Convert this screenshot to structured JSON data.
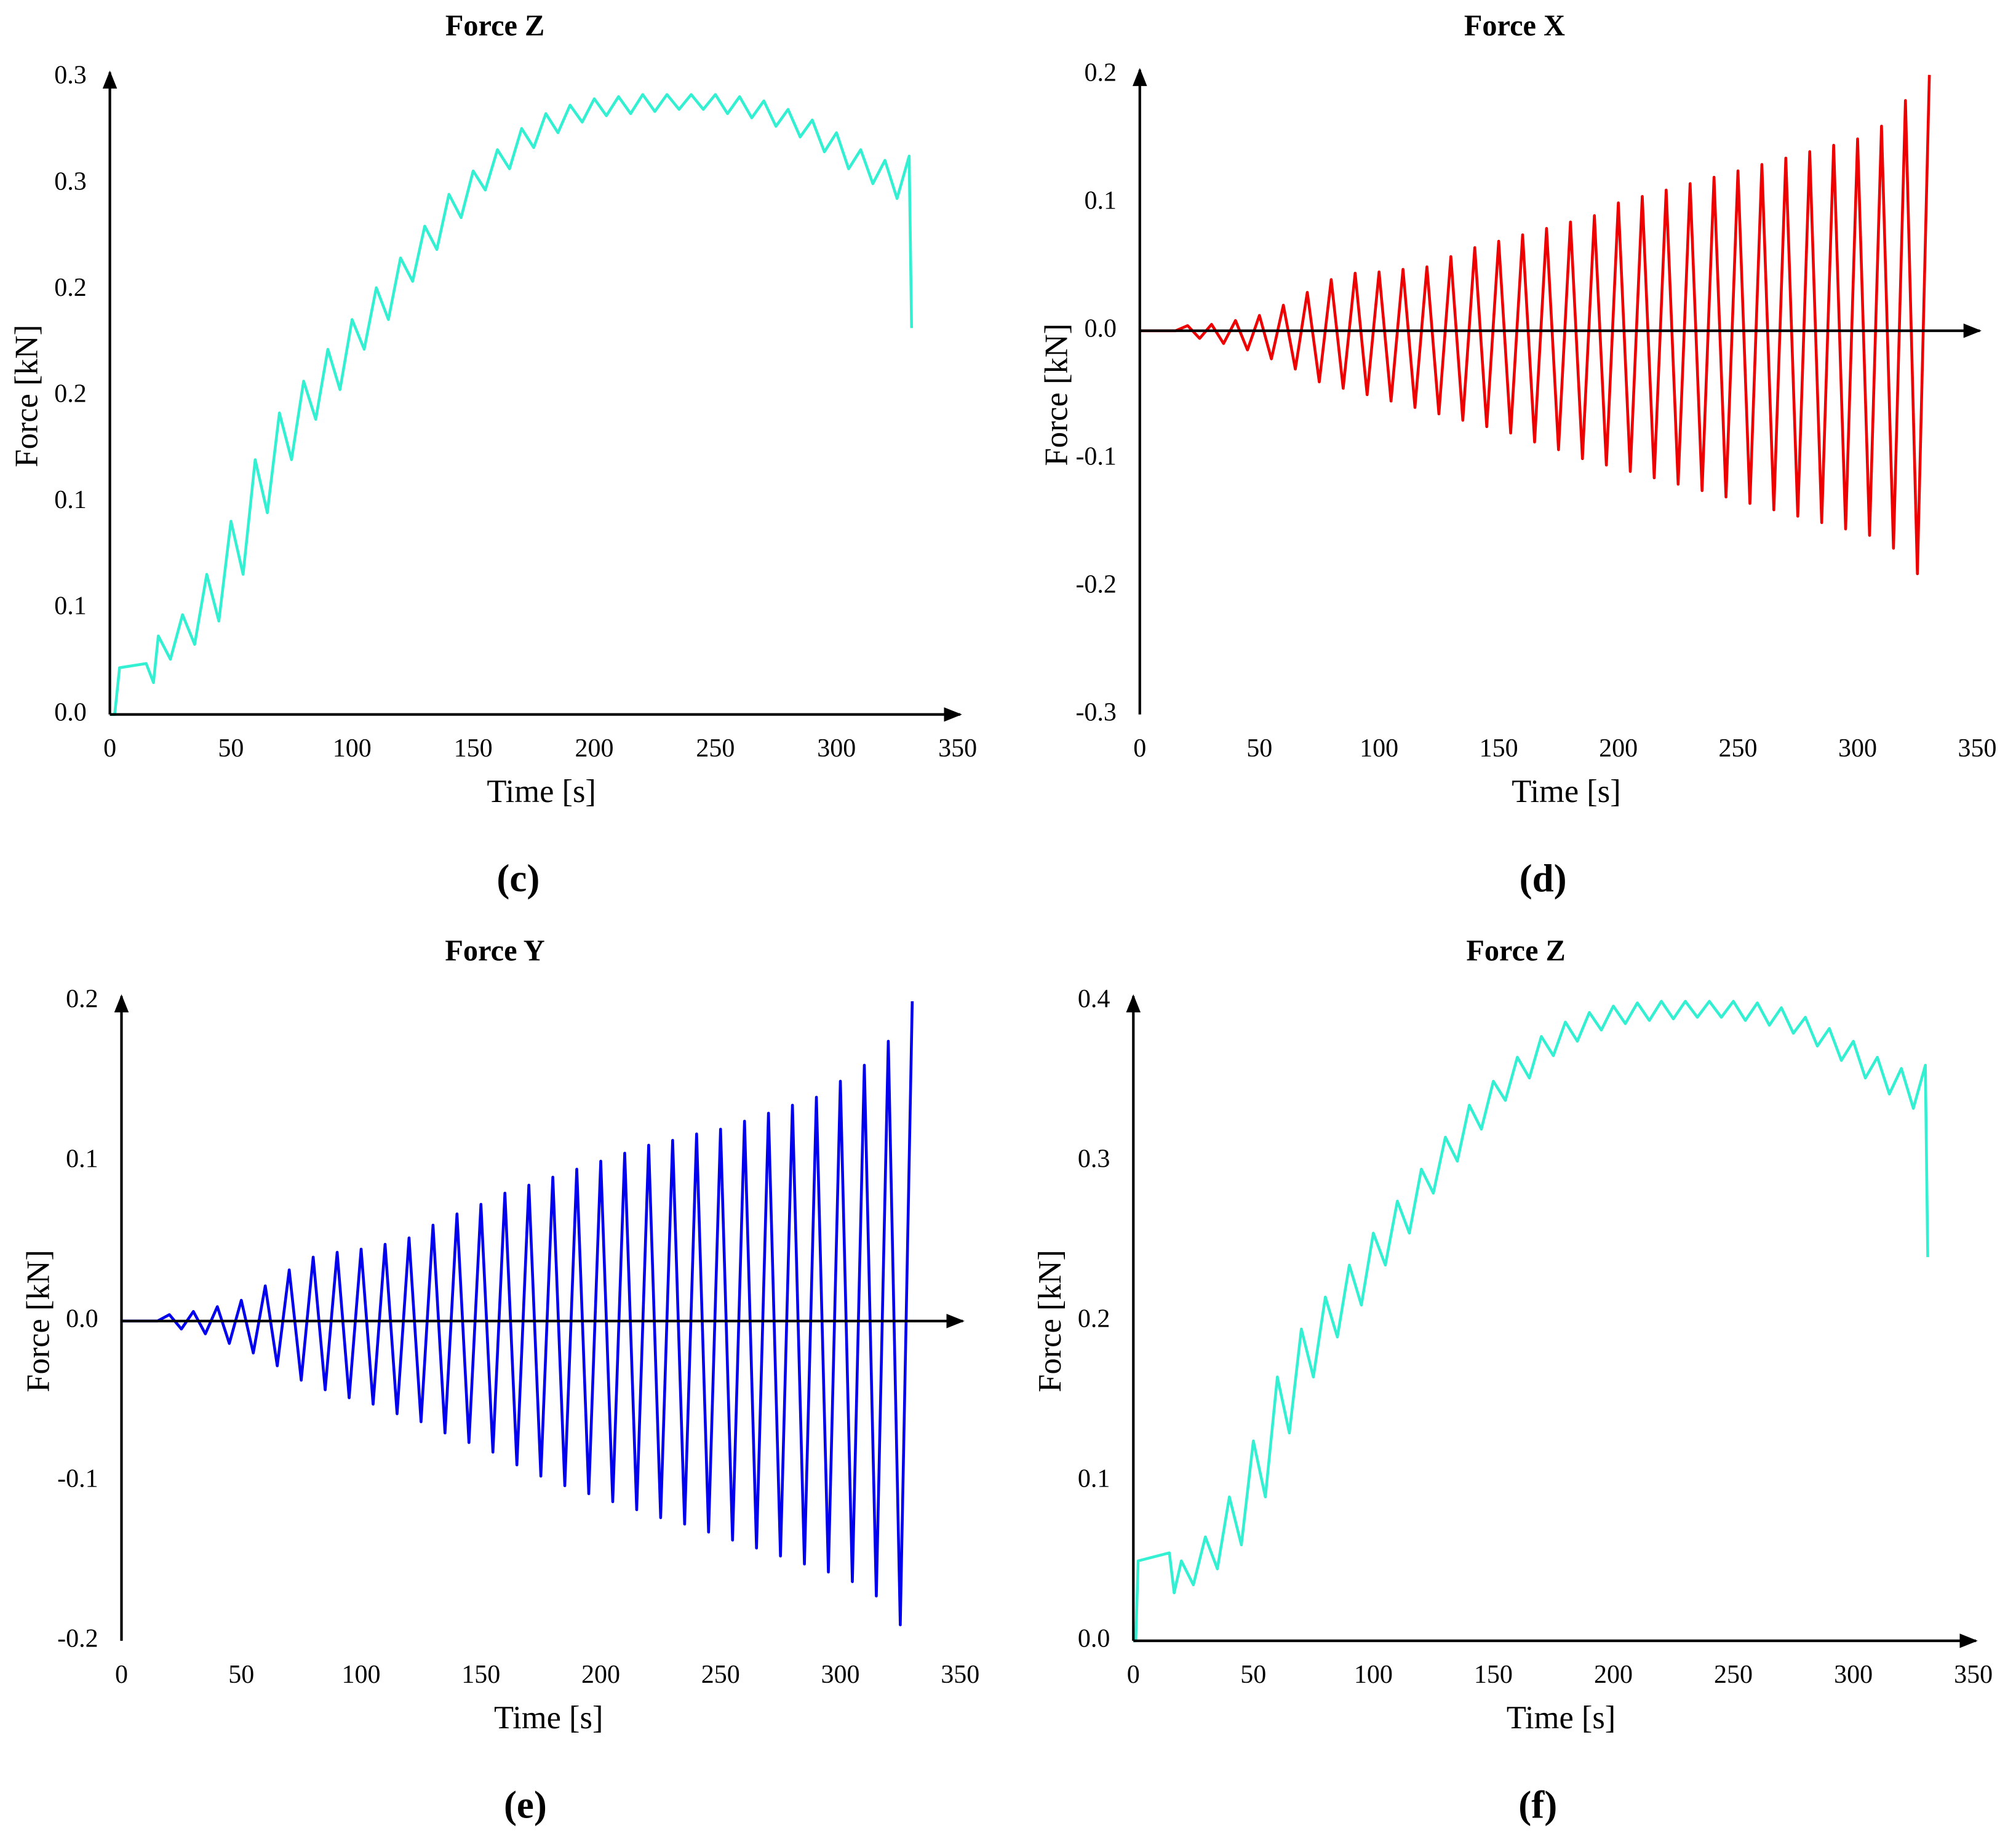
{
  "chart_data": [
    {
      "type": "line",
      "title": "Force Z",
      "label": "(c)",
      "x_label": "Time [s]",
      "y_label": "Force [kN]",
      "color": "#33f0d2",
      "xlim": [
        0,
        350
      ],
      "xticks": [
        0,
        50,
        100,
        150,
        200,
        250,
        300,
        350
      ],
      "ylim": [
        0,
        0.3
      ],
      "yticks": [
        {
          "value": 0,
          "label": "0.0"
        },
        {
          "value": 0.05,
          "label": "0.1"
        },
        {
          "value": 0.1,
          "label": "0.1"
        },
        {
          "value": 0.15,
          "label": "0.2"
        },
        {
          "value": 0.2,
          "label": "0.2"
        },
        {
          "value": 0.25,
          "label": "0.3"
        },
        {
          "value": 0.3,
          "label": "0.3"
        }
      ],
      "x": [
        0,
        2,
        4,
        15,
        18,
        20,
        25,
        30,
        35,
        40,
        45,
        50,
        55,
        60,
        65,
        70,
        75,
        80,
        85,
        90,
        95,
        100,
        105,
        110,
        115,
        120,
        125,
        130,
        135,
        140,
        145,
        150,
        155,
        160,
        165,
        170,
        175,
        180,
        185,
        190,
        195,
        200,
        205,
        210,
        215,
        220,
        225,
        230,
        235,
        240,
        245,
        250,
        255,
        260,
        265,
        270,
        275,
        280,
        285,
        290,
        295,
        300,
        305,
        310,
        315,
        320,
        325,
        330,
        331
      ],
      "values": [
        0,
        0,
        0.022,
        0.024,
        0.015,
        0.037,
        0.026,
        0.047,
        0.033,
        0.066,
        0.044,
        0.091,
        0.066,
        0.12,
        0.095,
        0.142,
        0.12,
        0.157,
        0.139,
        0.172,
        0.153,
        0.186,
        0.172,
        0.201,
        0.186,
        0.215,
        0.204,
        0.23,
        0.219,
        0.245,
        0.234,
        0.256,
        0.247,
        0.266,
        0.257,
        0.276,
        0.267,
        0.283,
        0.274,
        0.287,
        0.279,
        0.29,
        0.282,
        0.291,
        0.283,
        0.292,
        0.284,
        0.292,
        0.285,
        0.292,
        0.285,
        0.292,
        0.283,
        0.291,
        0.281,
        0.289,
        0.277,
        0.285,
        0.272,
        0.28,
        0.265,
        0.274,
        0.257,
        0.266,
        0.25,
        0.261,
        0.243,
        0.263,
        0.182
      ]
    },
    {
      "type": "line",
      "title": "Force X",
      "label": "(d)",
      "x_label": "Time [s]",
      "y_label": "Force [kN]",
      "color": "#ee0000",
      "xlim": [
        0,
        350
      ],
      "xticks": [
        0,
        50,
        100,
        150,
        200,
        250,
        300,
        350
      ],
      "ylim": [
        -0.3,
        0.2
      ],
      "yticks": [
        -0.3,
        -0.2,
        -0.1,
        {
          "value": 0,
          "label": "0.0"
        },
        0.1,
        0.2
      ],
      "x": [
        0,
        15,
        20,
        25,
        30,
        35,
        40,
        45,
        50,
        55,
        60,
        65,
        70,
        75,
        80,
        85,
        90,
        95,
        100,
        105,
        110,
        115,
        120,
        125,
        130,
        135,
        140,
        145,
        150,
        155,
        160,
        165,
        170,
        175,
        180,
        185,
        190,
        195,
        200,
        205,
        210,
        215,
        220,
        225,
        230,
        235,
        240,
        245,
        250,
        255,
        260,
        265,
        270,
        275,
        280,
        285,
        290,
        295,
        300,
        305,
        310,
        315,
        320,
        325,
        330
      ],
      "values": [
        0,
        0,
        0.004,
        -0.006,
        0.005,
        -0.01,
        0.008,
        -0.015,
        0.012,
        -0.022,
        0.02,
        -0.03,
        0.03,
        -0.04,
        0.04,
        -0.045,
        0.045,
        -0.05,
        0.046,
        -0.055,
        0.048,
        -0.06,
        0.05,
        -0.065,
        0.058,
        -0.07,
        0.065,
        -0.075,
        0.07,
        -0.08,
        0.075,
        -0.087,
        0.08,
        -0.093,
        0.085,
        -0.1,
        0.09,
        -0.105,
        0.1,
        -0.11,
        0.105,
        -0.115,
        0.11,
        -0.12,
        0.115,
        -0.125,
        0.12,
        -0.13,
        0.125,
        -0.135,
        0.13,
        -0.14,
        0.135,
        -0.145,
        0.14,
        -0.15,
        0.145,
        -0.155,
        0.15,
        -0.16,
        0.16,
        -0.17,
        0.18,
        -0.19,
        0.2
      ]
    },
    {
      "type": "line",
      "title": "Force Y",
      "label": "(e)",
      "x_label": "Time [s]",
      "y_label": "Force [kN]",
      "color": "#0000ee",
      "xlim": [
        0,
        350
      ],
      "xticks": [
        0,
        50,
        100,
        150,
        200,
        250,
        300,
        350
      ],
      "ylim": [
        -0.2,
        0.2
      ],
      "yticks": [
        -0.2,
        -0.1,
        {
          "value": 0,
          "label": "0.0"
        },
        0.1,
        0.2
      ],
      "x": [
        0,
        15,
        20,
        25,
        30,
        35,
        40,
        45,
        50,
        55,
        60,
        65,
        70,
        75,
        80,
        85,
        90,
        95,
        100,
        105,
        110,
        115,
        120,
        125,
        130,
        135,
        140,
        145,
        150,
        155,
        160,
        165,
        170,
        175,
        180,
        185,
        190,
        195,
        200,
        205,
        210,
        215,
        220,
        225,
        230,
        235,
        240,
        245,
        250,
        255,
        260,
        265,
        270,
        275,
        280,
        285,
        290,
        295,
        300,
        305,
        310,
        315,
        320,
        325,
        330
      ],
      "values": [
        0,
        0,
        0.004,
        -0.005,
        0.006,
        -0.008,
        0.009,
        -0.014,
        0.013,
        -0.02,
        0.022,
        -0.028,
        0.032,
        -0.037,
        0.04,
        -0.043,
        0.043,
        -0.048,
        0.045,
        -0.052,
        0.048,
        -0.058,
        0.052,
        -0.063,
        0.06,
        -0.07,
        0.067,
        -0.076,
        0.073,
        -0.082,
        0.08,
        -0.09,
        0.085,
        -0.097,
        0.09,
        -0.103,
        0.095,
        -0.108,
        0.1,
        -0.113,
        0.105,
        -0.118,
        0.11,
        -0.123,
        0.113,
        -0.127,
        0.117,
        -0.132,
        0.12,
        -0.137,
        0.125,
        -0.142,
        0.13,
        -0.147,
        0.135,
        -0.152,
        0.14,
        -0.157,
        0.15,
        -0.163,
        0.16,
        -0.172,
        0.175,
        -0.19,
        0.2
      ]
    },
    {
      "type": "line",
      "title": "Force Z",
      "label": "(f)",
      "x_label": "Time [s]",
      "y_label": "Force [kN]",
      "color": "#33f0d2",
      "xlim": [
        0,
        350
      ],
      "xticks": [
        0,
        50,
        100,
        150,
        200,
        250,
        300,
        350
      ],
      "ylim": [
        0,
        0.4
      ],
      "yticks": [
        {
          "value": 0,
          "label": "0.0"
        },
        0.1,
        0.2,
        0.3,
        0.4
      ],
      "x": [
        0,
        1,
        2,
        15,
        17,
        20,
        25,
        30,
        35,
        40,
        45,
        50,
        55,
        60,
        65,
        70,
        75,
        80,
        85,
        90,
        95,
        100,
        105,
        110,
        115,
        120,
        125,
        130,
        135,
        140,
        145,
        150,
        155,
        160,
        165,
        170,
        175,
        180,
        185,
        190,
        195,
        200,
        205,
        210,
        215,
        220,
        225,
        230,
        235,
        240,
        245,
        250,
        255,
        260,
        265,
        270,
        275,
        280,
        285,
        290,
        295,
        300,
        305,
        310,
        315,
        320,
        325,
        330,
        331
      ],
      "values": [
        0,
        0,
        0.05,
        0.055,
        0.03,
        0.05,
        0.035,
        0.065,
        0.045,
        0.09,
        0.06,
        0.125,
        0.09,
        0.165,
        0.13,
        0.195,
        0.165,
        0.215,
        0.19,
        0.235,
        0.21,
        0.255,
        0.235,
        0.275,
        0.255,
        0.295,
        0.28,
        0.315,
        0.3,
        0.335,
        0.32,
        0.35,
        0.338,
        0.365,
        0.352,
        0.378,
        0.366,
        0.387,
        0.375,
        0.393,
        0.382,
        0.397,
        0.386,
        0.399,
        0.388,
        0.4,
        0.389,
        0.4,
        0.39,
        0.4,
        0.39,
        0.4,
        0.388,
        0.399,
        0.385,
        0.396,
        0.38,
        0.39,
        0.372,
        0.383,
        0.363,
        0.375,
        0.352,
        0.365,
        0.342,
        0.358,
        0.333,
        0.36,
        0.24
      ]
    }
  ]
}
